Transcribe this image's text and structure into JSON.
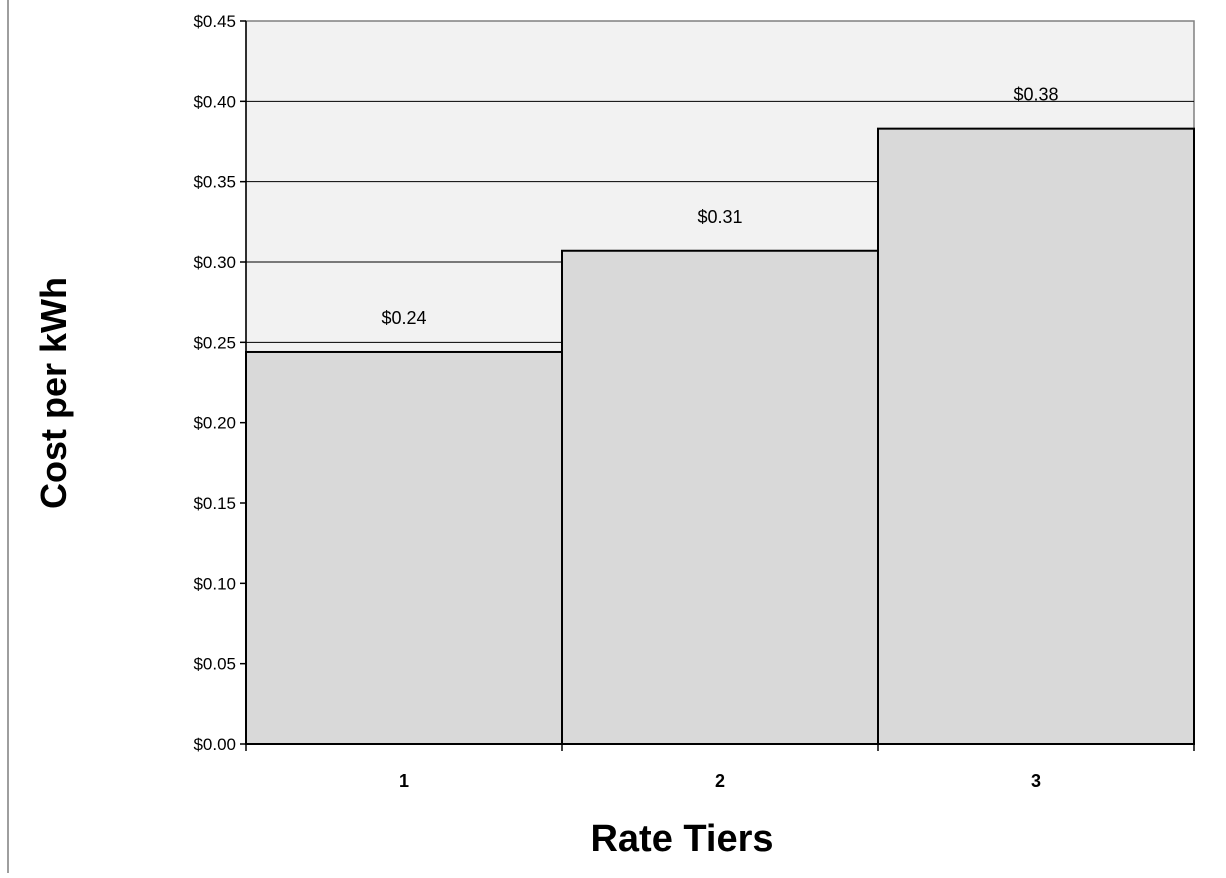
{
  "chart_data": {
    "type": "bar",
    "title": "",
    "xlabel": "Rate Tiers",
    "ylabel": "Cost per kWh",
    "categories": [
      "1",
      "2",
      "3"
    ],
    "values": [
      0.244,
      0.307,
      0.383
    ],
    "data_labels": [
      "$0.24",
      "$0.31",
      "$0.38"
    ],
    "ylim": [
      0,
      0.45
    ],
    "yticks": [
      0,
      0.05,
      0.1,
      0.15,
      0.2,
      0.25,
      0.3,
      0.35,
      0.4,
      0.45
    ],
    "ytick_labels": [
      "$0.00",
      "$0.05",
      "$0.10",
      "$0.15",
      "$0.20",
      "$0.25",
      "$0.30",
      "$0.35",
      "$0.40",
      "$0.45"
    ],
    "grid": true,
    "legend": "none",
    "colors": {
      "plot_background": "#f2f2f2",
      "bar_fill": "#d9d9d9",
      "bar_stroke": "#000000",
      "gridline": "#000000"
    }
  }
}
